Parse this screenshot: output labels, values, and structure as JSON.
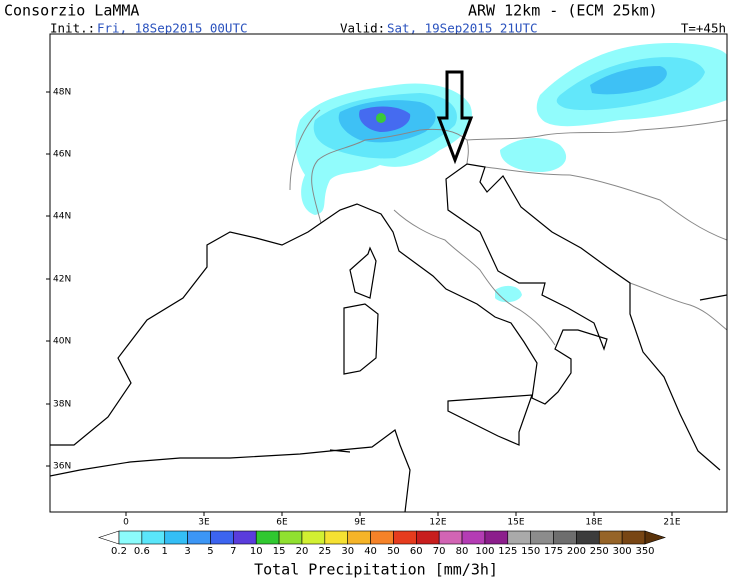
{
  "header": {
    "title": "Consorzio LaMMA",
    "model": "ARW 12km  -  (ECM 25km)",
    "init_label": "Init.:",
    "init_time": "Fri, 18Sep2015 00UTC",
    "valid_label": "Valid:",
    "valid_time": "Sat, 19Sep2015 21UTC",
    "forecast_step": "T=+45h"
  },
  "map": {
    "lat_labels": [
      "48N",
      "46N",
      "44N",
      "42N",
      "40N",
      "38N",
      "36N"
    ],
    "lon_labels": [
      "0",
      "3E",
      "6E",
      "9E",
      "12E",
      "15E",
      "18E",
      "21E"
    ]
  },
  "colorbar": {
    "labels": [
      "0.2",
      "0.6",
      "1",
      "3",
      "5",
      "7",
      "10",
      "15",
      "20",
      "25",
      "30",
      "40",
      "50",
      "60",
      "70",
      "80",
      "100",
      "125",
      "150",
      "175",
      "200",
      "250",
      "300",
      "350"
    ],
    "colors": [
      "#ffffff",
      "#8cfcfc",
      "#5ae6fa",
      "#34bef5",
      "#3c96f5",
      "#3c64f0",
      "#5a3cdc",
      "#30c830",
      "#90e030",
      "#d2f032",
      "#f5e132",
      "#f5b428",
      "#f58228",
      "#e63c1e",
      "#c81e1e",
      "#d264b4",
      "#b43cb4",
      "#8c1e8c",
      "#aaaaaa",
      "#8c8c8c",
      "#6e6e6e",
      "#3c3c3c",
      "#966428",
      "#784614",
      "#5a320a"
    ],
    "title": "Total Precipitation [mm/3h]"
  }
}
